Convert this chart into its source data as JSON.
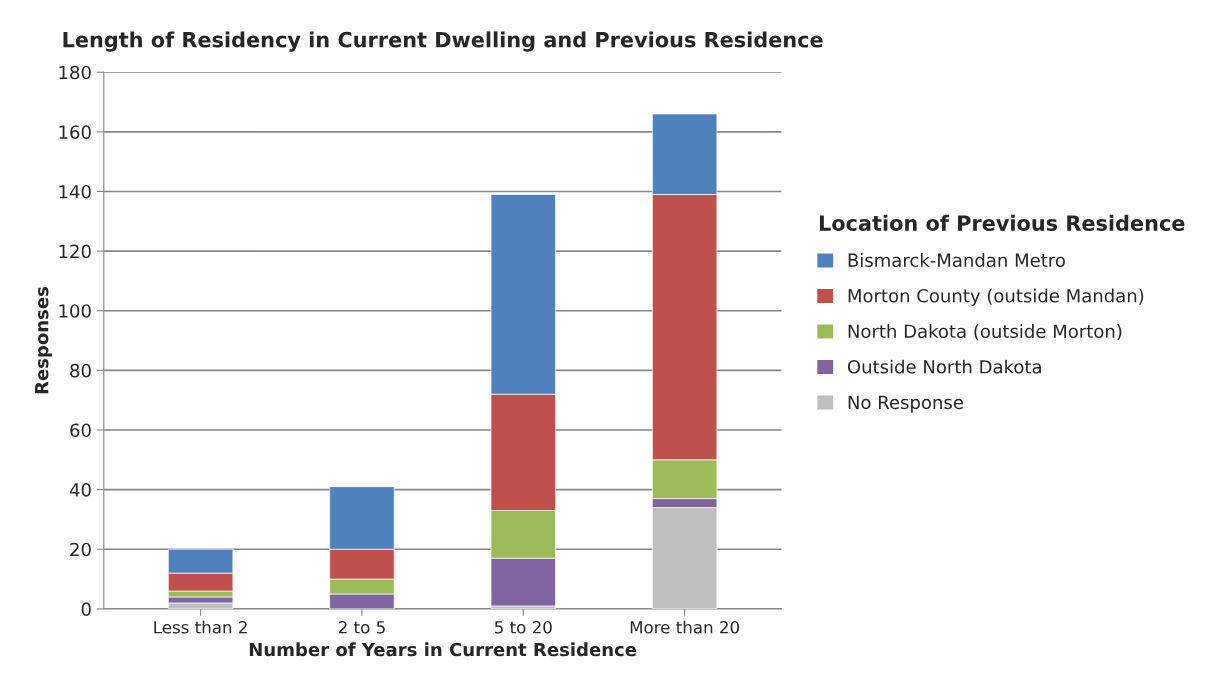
{
  "chart_data": {
    "type": "bar",
    "stacked": true,
    "title": "Length of Residency in Current Dwelling and Previous Residence",
    "xlabel": "Number of Years in Current Residence",
    "ylabel": "Responses",
    "legend_title": "Location of Previous Residence",
    "legend": "right",
    "grid": "y",
    "categories": [
      "Less than 2",
      "2 to 5",
      "5 to 20",
      "More than 20"
    ],
    "ylim": [
      0,
      180
    ],
    "yticks": [
      0,
      20,
      40,
      60,
      80,
      100,
      120,
      140,
      160,
      180
    ],
    "series": [
      {
        "name": "No Response",
        "color": "#bfbfbf",
        "values": [
          2,
          0,
          1,
          34
        ]
      },
      {
        "name": "Outside North Dakota",
        "color": "#8064a2",
        "values": [
          2,
          5,
          16,
          3
        ]
      },
      {
        "name": "North Dakota (outside Morton)",
        "color": "#9bbb59",
        "values": [
          2,
          5,
          16,
          13
        ]
      },
      {
        "name": "Morton County (outside Mandan)",
        "color": "#c0504d",
        "values": [
          6,
          10,
          39,
          89
        ]
      },
      {
        "name": "Bismarck-Mandan Metro",
        "color": "#4f81bd",
        "values": [
          8,
          21,
          67,
          27
        ]
      }
    ]
  }
}
